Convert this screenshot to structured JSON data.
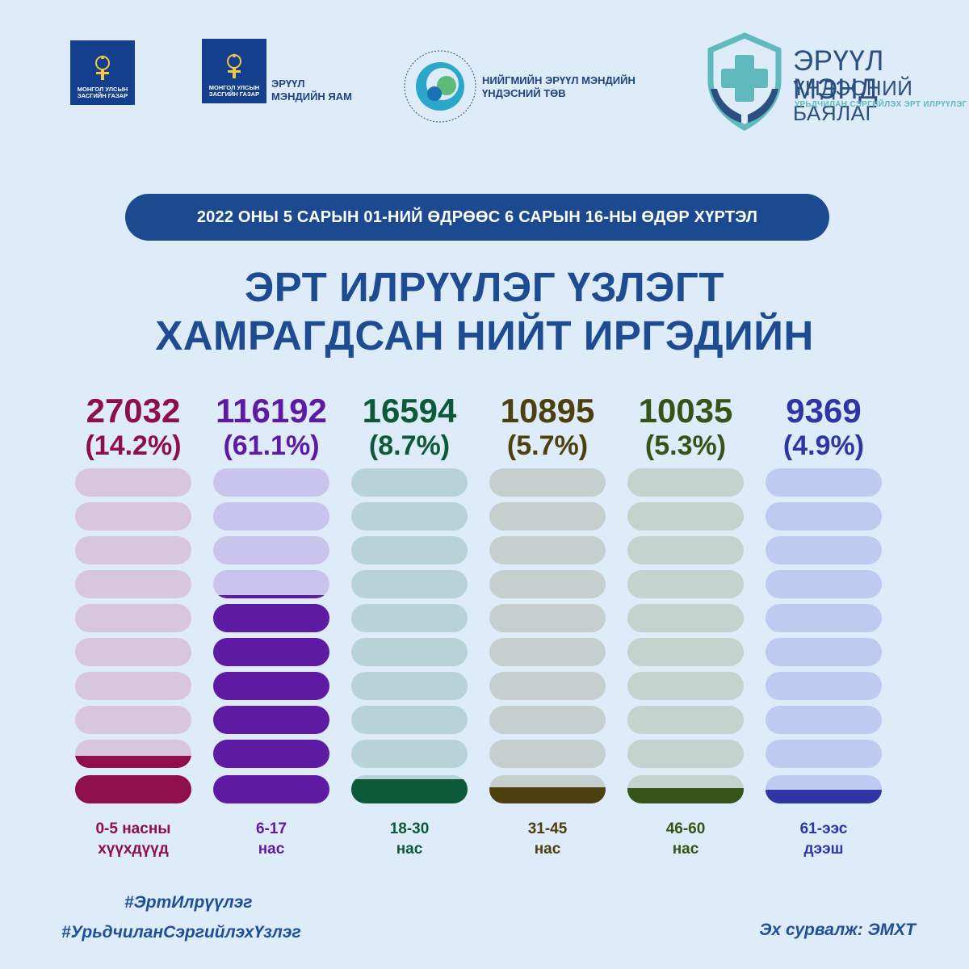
{
  "logos": {
    "gov_caption_line1": "МОНГОЛ УЛСЫН",
    "gov_caption_line2": "ЗАСГИЙН ГАЗАР",
    "ministry_caption_line1": "МОНГОЛ УЛСЫН",
    "ministry_caption_line2": "ЗАСГИЙН ГАЗАР",
    "ministry_name_line1": "ЭРҮҮЛ",
    "ministry_name_line2": "МЭНДИЙН ЯАМ",
    "ncph_name_line1": "НИЙГМИЙН ЭРҮҮЛ МЭНДИЙН",
    "ncph_name_line2": "ҮНДЭСНИЙ ТӨВ",
    "brand_title": "ЭРҮҮЛ МЭНД",
    "brand_subtitle": "ҮНДЭСНИЙ БАЯЛАГ",
    "brand_tagline": "УРЬДЧИЛАН СЭРГИЙЛЭХ ЭРТ ИЛРҮҮЛЭГ",
    "icons": [
      "soyombo-emblem-icon",
      "soyombo-emblem-icon",
      "ncph-circle-logo-icon",
      "shield-cross-hands-icon"
    ]
  },
  "date_range": "2022 ОНЫ 5 САРЫН 01-НИЙ ӨДРӨӨС 6 САРЫН 16-НЫ ӨДӨР ХҮРТЭЛ",
  "headline_line1": "ЭРТ ИЛРҮҮЛЭГ ҮЗЛЭГТ",
  "headline_line2": "ХАМРАГДСАН НИЙТ ИРГЭДИЙН",
  "chart_data": {
    "type": "bar",
    "categories": [
      "0-5 насны хүүхдүүд",
      "6-17 нас",
      "18-30 нас",
      "31-45 нас",
      "46-60 нас",
      "61-ээс дээш"
    ],
    "series": [
      {
        "values": [
          27032,
          116192,
          16594,
          10895,
          10035,
          9369
        ],
        "percent": [
          14.2,
          61.1,
          8.7,
          5.7,
          5.3,
          4.9
        ]
      }
    ],
    "ylim": [
      0,
      100
    ]
  },
  "columns": [
    {
      "value": "27032",
      "percent": "(14.2%)",
      "label_line1": "0-5 насны",
      "label_line2": "хүүхдүүд",
      "color": "#8e0f4c",
      "track": "#d8c5de"
    },
    {
      "value": "116192",
      "percent": "(61.1%)",
      "label_line1": "6-17",
      "label_line2": "нас",
      "color": "#5e1aa3",
      "track": "#c9c4ec"
    },
    {
      "value": "16594",
      "percent": "(8.7%)",
      "label_line1": "18-30",
      "label_line2": "нас",
      "color": "#0d5a3a",
      "track": "#b7d3d7"
    },
    {
      "value": "10895",
      "percent": "(5.7%)",
      "label_line1": "31-45",
      "label_line2": "нас",
      "color": "#4e3f0f",
      "track": "#c5cfce"
    },
    {
      "value": "10035",
      "percent": "(5.3%)",
      "label_line1": "46-60",
      "label_line2": "нас",
      "color": "#355417",
      "track": "#c4d3cd"
    },
    {
      "value": "9369",
      "percent": "(4.9%)",
      "label_line1": "61-ээс",
      "label_line2": "дээш",
      "color": "#2e36a6",
      "track": "#bfcaf0"
    }
  ],
  "hashtag1": "#ЭртИлрүүлэг",
  "hashtag2": "#УрьдчиланСэргийлэхҮзлэг",
  "source": "Эх сурвалж: ЭМХТ"
}
